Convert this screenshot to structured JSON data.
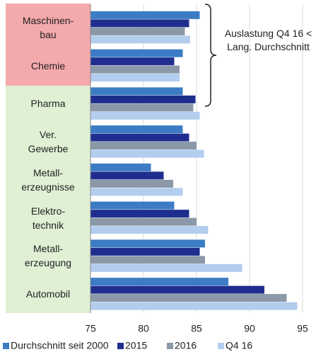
{
  "chart_data": {
    "type": "bar",
    "orientation": "horizontal",
    "categories": [
      "Maschinen-\nbau",
      "Chemie",
      "Pharma",
      "Ver.\nGewerbe",
      "Metall-\nerzeugnisse",
      "Elektro-\ntechnik",
      "Metall-\nerzeugung",
      "Automobil"
    ],
    "series": [
      {
        "name": "Durchschnitt seit 2000",
        "color": "#3b7cc4",
        "values": [
          85.3,
          83.7,
          83.7,
          83.7,
          80.7,
          82.9,
          85.8,
          88.0
        ]
      },
      {
        "name": "2015",
        "color": "#1f2e8e",
        "values": [
          84.3,
          82.9,
          84.9,
          84.3,
          81.9,
          84.3,
          85.3,
          91.4
        ]
      },
      {
        "name": "2016",
        "color": "#8a98a8",
        "values": [
          83.9,
          83.4,
          84.7,
          85.0,
          82.8,
          85.0,
          85.8,
          93.5
        ]
      },
      {
        "name": "Q4 16",
        "color": "#b3cdef",
        "values": [
          84.4,
          83.4,
          85.3,
          85.7,
          83.7,
          86.1,
          89.3,
          94.5
        ]
      }
    ],
    "xlim": [
      75,
      95
    ],
    "xticks": [
      75,
      80,
      85,
      90,
      95
    ],
    "grid": true,
    "legend": "bottom",
    "annotation": "Auslastung\nQ4 16 < Lang.\nDurchschnitt"
  }
}
